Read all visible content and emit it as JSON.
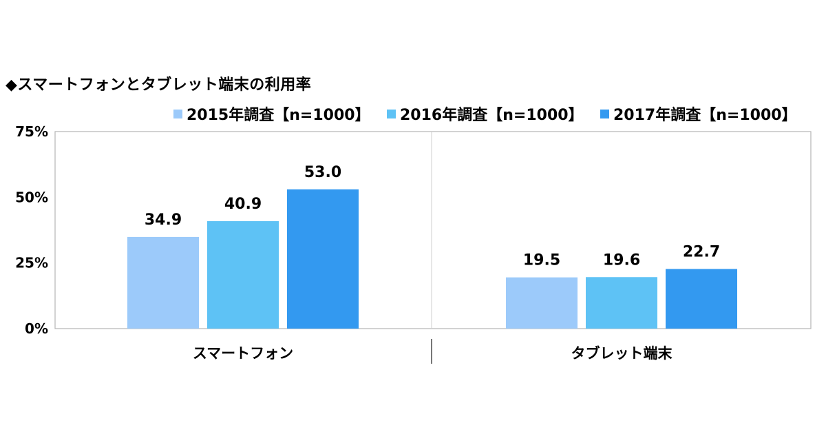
{
  "chart_data": {
    "type": "bar",
    "title": "◆スマートフォンとタブレット端末の利用率",
    "categories": [
      "スマートフォン",
      "タブレット端末"
    ],
    "series": [
      {
        "name": "2015年調査【n=1000】",
        "values": [
          34.9,
          19.5
        ],
        "color": "#9ccafa"
      },
      {
        "name": "2016年調査【n=1000】",
        "values": [
          40.9,
          19.6
        ],
        "color": "#5ec2f5"
      },
      {
        "name": "2017年調査【n=1000】",
        "values": [
          53.0,
          22.7
        ],
        "color": "#3399f0"
      }
    ],
    "data_labels": [
      [
        "34.9",
        "19.5"
      ],
      [
        "40.9",
        "19.6"
      ],
      [
        "53.0",
        "22.7"
      ]
    ],
    "ylim": [
      0,
      75
    ],
    "yticks": [
      0,
      25,
      50,
      75
    ],
    "ytick_labels": [
      "0%",
      "25%",
      "50%",
      "75%"
    ],
    "xlabel": "",
    "ylabel": "",
    "legend_position": "top-right",
    "grid": false
  }
}
